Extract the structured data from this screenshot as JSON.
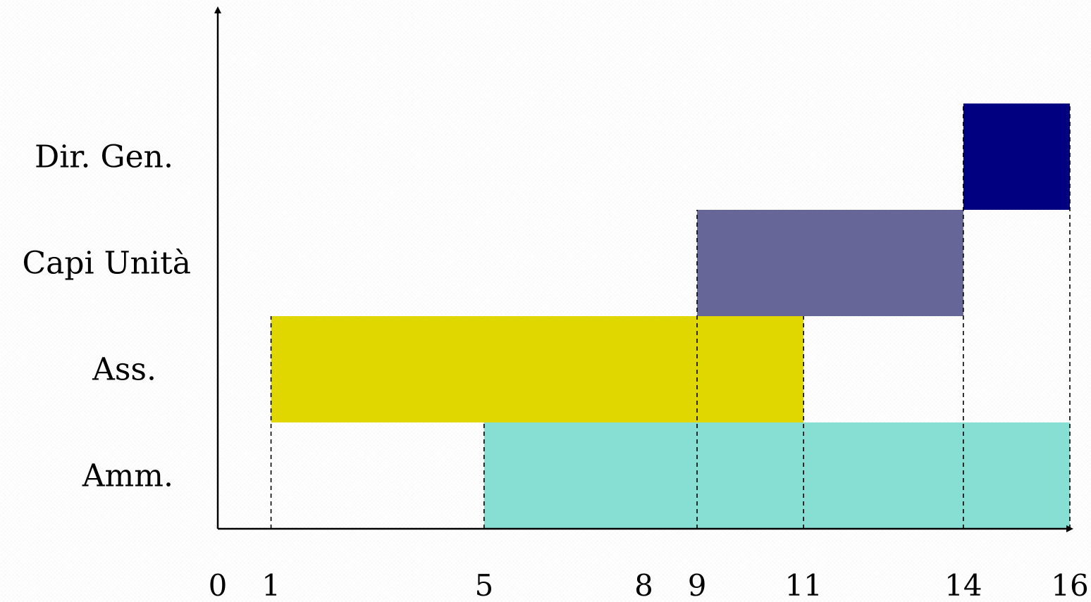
{
  "chart_data": {
    "type": "bar",
    "orientation": "horizontal-gantt",
    "title": "",
    "xlabel": "",
    "ylabel": "",
    "xlim": [
      0,
      16
    ],
    "x_ticks": [
      "0",
      "1",
      "5",
      "8",
      "9",
      "11",
      "14",
      "16"
    ],
    "categories": [
      "Amm.",
      "Ass.",
      "Capi Unità",
      "Dir. Gen."
    ],
    "bars": [
      {
        "category": "Amm.",
        "start": 5,
        "end": 16,
        "color": "#86dfd2"
      },
      {
        "category": "Ass.",
        "start": 1,
        "end": 11,
        "color": "#e0d700"
      },
      {
        "category": "Capi Unità",
        "start": 9,
        "end": 14,
        "color": "#666699"
      },
      {
        "category": "Dir. Gen.",
        "start": 14,
        "end": 16,
        "color": "#000080"
      }
    ],
    "guide_lines_at": [
      1,
      5,
      9,
      11,
      14,
      16
    ],
    "grid": false,
    "legend": "none"
  }
}
